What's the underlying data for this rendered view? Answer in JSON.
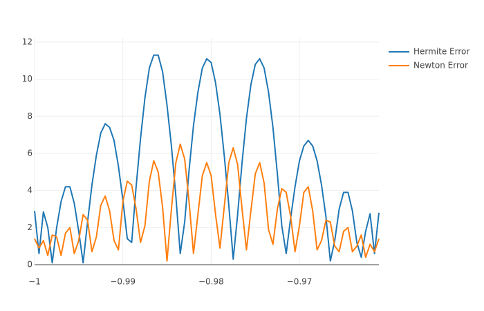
{
  "chart_data": {
    "type": "line",
    "x": [
      -1,
      -0.9995,
      -0.999,
      -0.9985,
      -0.998,
      -0.9975,
      -0.997,
      -0.9965,
      -0.996,
      -0.9955,
      -0.995,
      -0.9945,
      -0.994,
      -0.9935,
      -0.993,
      -0.9925,
      -0.992,
      -0.9915,
      -0.991,
      -0.9905,
      -0.99,
      -0.9895,
      -0.989,
      -0.9885,
      -0.988,
      -0.9875,
      -0.987,
      -0.9865,
      -0.986,
      -0.9855,
      -0.985,
      -0.9845,
      -0.984,
      -0.9835,
      -0.983,
      -0.9825,
      -0.982,
      -0.9815,
      -0.981,
      -0.9805,
      -0.98,
      -0.9795,
      -0.979,
      -0.9785,
      -0.978,
      -0.9775,
      -0.977,
      -0.9765,
      -0.976,
      -0.9755,
      -0.975,
      -0.9745,
      -0.974,
      -0.9735,
      -0.973,
      -0.9725,
      -0.972,
      -0.9715,
      -0.971,
      -0.9705,
      -0.97,
      -0.9695,
      -0.969,
      -0.9685,
      -0.968,
      -0.9675,
      -0.967,
      -0.9665,
      -0.966,
      -0.9655,
      -0.965,
      -0.9645,
      -0.964,
      -0.9635,
      -0.963,
      -0.9625,
      -0.962,
      -0.9615,
      -0.961
    ],
    "series": [
      {
        "name": "Hermite Error",
        "color": "#1f77b4",
        "values": [
          2.9,
          0.6,
          2.85,
          2.0,
          0.1,
          2.0,
          3.4,
          4.2,
          4.2,
          3.3,
          1.8,
          0.1,
          2.3,
          4.3,
          5.9,
          7.1,
          7.6,
          7.4,
          6.7,
          5.3,
          3.5,
          1.4,
          1.2,
          4.2,
          6.8,
          9.0,
          10.6,
          11.3,
          11.3,
          10.4,
          8.6,
          6.4,
          3.7,
          0.6,
          2.3,
          5.1,
          7.5,
          9.3,
          10.6,
          11.1,
          10.9,
          9.8,
          8.1,
          5.8,
          3.2,
          0.3,
          2.7,
          5.5,
          7.9,
          9.7,
          10.8,
          11.1,
          10.6,
          9.3,
          7.4,
          4.9,
          2.1,
          0.6,
          2.5,
          4.2,
          5.6,
          6.4,
          6.7,
          6.4,
          5.6,
          4.3,
          2.6,
          0.2,
          1.3,
          3.0,
          3.9,
          3.9,
          2.9,
          1.2,
          0.4,
          1.8,
          2.75,
          0.6,
          2.8
        ]
      },
      {
        "name": "Newton Error",
        "color": "#ff7f0e",
        "values": [
          1.4,
          0.9,
          1.3,
          0.5,
          1.6,
          1.5,
          0.5,
          1.7,
          2.0,
          0.6,
          1.3,
          2.7,
          2.4,
          0.7,
          1.5,
          3.2,
          3.7,
          2.9,
          1.3,
          0.8,
          3.4,
          4.5,
          4.3,
          3.0,
          1.2,
          2.1,
          4.5,
          5.6,
          5.0,
          3.1,
          0.2,
          3.0,
          5.5,
          6.5,
          5.7,
          3.4,
          0.6,
          2.7,
          4.8,
          5.5,
          4.8,
          2.7,
          0.9,
          3.2,
          5.5,
          6.3,
          5.4,
          3.0,
          0.8,
          2.9,
          4.9,
          5.5,
          4.4,
          1.9,
          1.1,
          3.0,
          4.1,
          3.9,
          2.6,
          0.7,
          2.1,
          3.9,
          4.2,
          2.9,
          0.8,
          1.3,
          2.4,
          2.3,
          1.0,
          0.7,
          1.8,
          2.0,
          0.7,
          1.0,
          1.6,
          0.4,
          1.1,
          0.7,
          1.4
        ]
      }
    ],
    "xlim": [
      -1,
      -0.961
    ],
    "xticks": [
      {
        "value": -1,
        "label": "−1"
      },
      {
        "value": -0.99,
        "label": "−0.99"
      },
      {
        "value": -0.98,
        "label": "−0.98"
      },
      {
        "value": -0.97,
        "label": "−0.97"
      }
    ],
    "ylim": [
      0,
      12.22
    ],
    "yticks": [
      0,
      2,
      4,
      6,
      8,
      10,
      12
    ],
    "grid": true,
    "legend": "top-right"
  }
}
